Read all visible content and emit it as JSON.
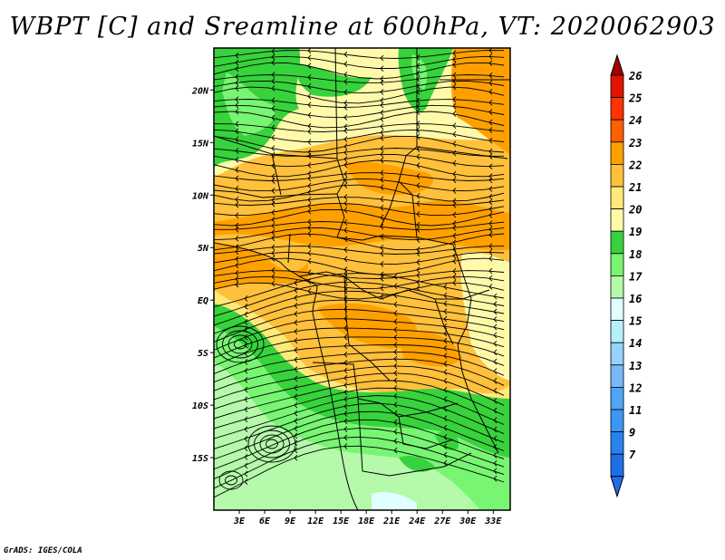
{
  "title": "WBPT [C] and Sreamline at 600hPa, VT: 2020062903",
  "credit": "GrADS: IGES/COLA",
  "map": {
    "lat_range": [
      -20,
      24
    ],
    "lon_range": [
      0,
      35
    ],
    "lat_ticks": [
      {
        "value": 20,
        "label": "20N"
      },
      {
        "value": 15,
        "label": "15N"
      },
      {
        "value": 10,
        "label": "10N"
      },
      {
        "value": 5,
        "label": "5N"
      },
      {
        "value": 0,
        "label": "EQ"
      },
      {
        "value": -5,
        "label": "5S"
      },
      {
        "value": -10,
        "label": "10S"
      },
      {
        "value": -15,
        "label": "15S"
      }
    ],
    "lon_ticks": [
      {
        "value": 3,
        "label": "3E"
      },
      {
        "value": 6,
        "label": "6E"
      },
      {
        "value": 9,
        "label": "9E"
      },
      {
        "value": 12,
        "label": "12E"
      },
      {
        "value": 15,
        "label": "15E"
      },
      {
        "value": 18,
        "label": "18E"
      },
      {
        "value": 21,
        "label": "21E"
      },
      {
        "value": 24,
        "label": "24E"
      },
      {
        "value": 27,
        "label": "27E"
      },
      {
        "value": 30,
        "label": "30E"
      },
      {
        "value": 33,
        "label": "33E"
      }
    ]
  },
  "colorbar": {
    "levels": [
      {
        "label": "7",
        "color": "#1e6ee6"
      },
      {
        "label": "9",
        "color": "#2882f0"
      },
      {
        "label": "11",
        "color": "#3c96f5"
      },
      {
        "label": "12",
        "color": "#50a5f5"
      },
      {
        "label": "13",
        "color": "#78b9fa"
      },
      {
        "label": "14",
        "color": "#96d2fa"
      },
      {
        "label": "15",
        "color": "#b4f0fa"
      },
      {
        "label": "16",
        "color": "#e1ffff"
      },
      {
        "label": "17",
        "color": "#b4faaa"
      },
      {
        "label": "18",
        "color": "#78f573"
      },
      {
        "label": "19",
        "color": "#37d23c"
      },
      {
        "label": "20",
        "color": "#fffaaa"
      },
      {
        "label": "21",
        "color": "#ffe978"
      },
      {
        "label": "22",
        "color": "#ffc03c"
      },
      {
        "label": "23",
        "color": "#ffa000"
      },
      {
        "label": "24",
        "color": "#ff6000"
      },
      {
        "label": "25",
        "color": "#ff3200"
      },
      {
        "label": "26",
        "color": "#e11400"
      }
    ],
    "top_arrow_color": "#a50000",
    "bottom_arrow_color": "#1e6ee6"
  }
}
